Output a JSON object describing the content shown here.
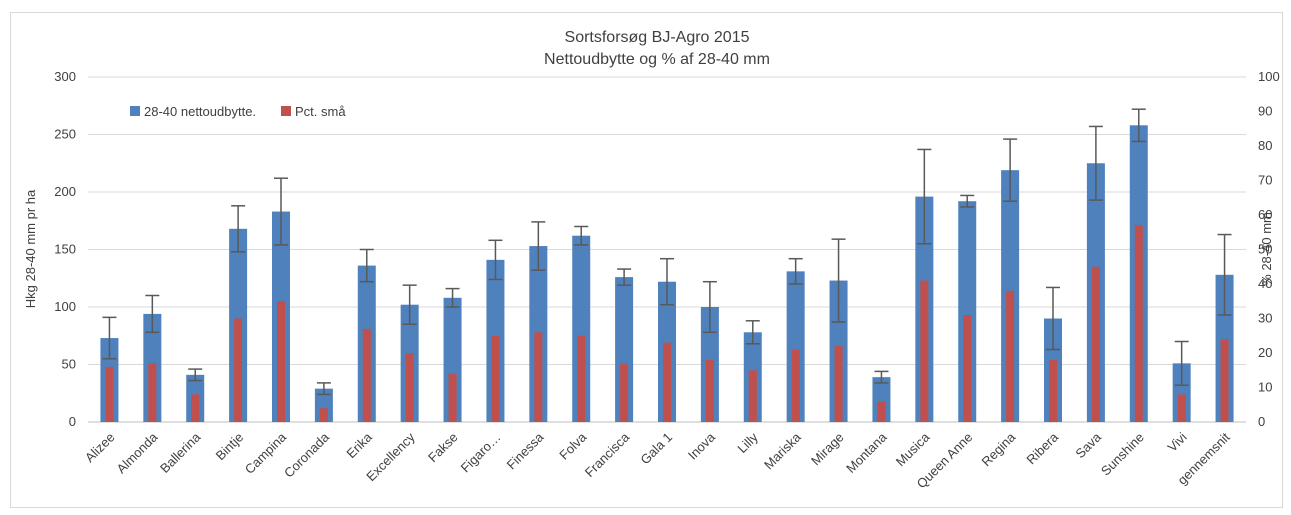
{
  "chart_data": {
    "type": "bar",
    "title": "Sortsforsøg BJ-Agro 2015",
    "subtitle": "Nettoudbytte og % af 28-40 mm",
    "ylabel": "Hkg 28-40 mm pr ha",
    "y2label": "% 28-40 mm",
    "ylim": [
      0,
      300
    ],
    "y2lim": [
      0,
      100
    ],
    "yticks": [
      "0",
      "50",
      "100",
      "150",
      "200",
      "250",
      "300"
    ],
    "y2ticks": [
      "0",
      "10",
      "20",
      "30",
      "40",
      "50",
      "60",
      "70",
      "80",
      "90",
      "100"
    ],
    "grid": true,
    "legend_position": "top-left",
    "colors": {
      "primary": "#4f81bd",
      "secondary": "#c0504d",
      "error": "#595959",
      "grid": "#d9d9d9"
    },
    "categories": [
      "Alizee",
      "Almonda",
      "Ballerina",
      "Bintje",
      "Campina",
      "Coronada",
      "Erika",
      "Excellency",
      "Fakse",
      "Figaro…",
      "Finessa",
      "Folva",
      "Francisca",
      "Gala 1",
      "Inova",
      "Lilly",
      "Mariska",
      "Mirage",
      "Montana",
      "Musica",
      "Queen Anne",
      "Regina",
      "Ribera",
      "Sava",
      "Sunshine",
      "Vivi",
      "gennemsnit"
    ],
    "series": [
      {
        "name": "28-40 nettoudbytte.",
        "axis": "left",
        "values": [
          73,
          94,
          41,
          168,
          183,
          29,
          136,
          102,
          108,
          141,
          153,
          162,
          126,
          122,
          100,
          78,
          131,
          123,
          39,
          196,
          192,
          219,
          90,
          225,
          258,
          51,
          128
        ],
        "error": [
          18,
          16,
          5,
          20,
          29,
          5,
          14,
          17,
          8,
          17,
          21,
          8,
          7,
          20,
          22,
          10,
          11,
          36,
          5,
          41,
          5,
          27,
          27,
          32,
          14,
          19,
          35
        ]
      },
      {
        "name": "Pct. små",
        "axis": "right",
        "values": [
          16,
          17,
          8,
          30,
          35,
          4,
          27,
          20,
          14,
          25,
          26,
          25,
          17,
          23,
          18,
          15,
          21,
          22,
          6,
          41,
          31,
          38,
          18,
          45,
          57,
          8,
          24
        ]
      }
    ]
  }
}
